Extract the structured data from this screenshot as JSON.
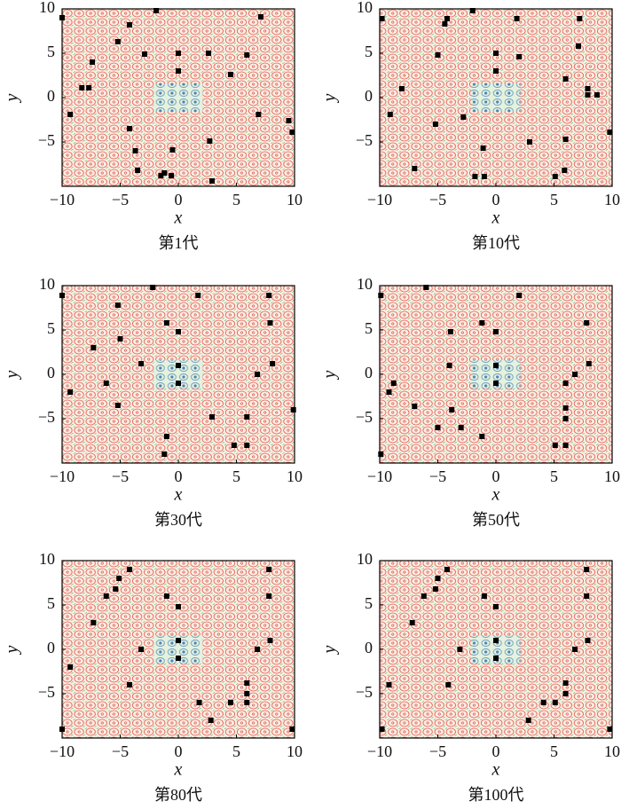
{
  "chart_data": [
    {
      "type": "scatter",
      "caption": "第1代",
      "xlabel": "x",
      "ylabel": "y",
      "color": "#000000",
      "xlim": [
        -10,
        10
      ],
      "ylim": [
        -10,
        10
      ],
      "xticks": [
        {
          "value": -10,
          "label": "−10"
        },
        {
          "value": -5,
          "label": "−5"
        },
        0,
        5,
        10
      ],
      "yticks": [
        {
          "value": -5,
          "label": "−5"
        },
        0,
        5,
        10
      ],
      "x": [
        -10,
        -4.2,
        -1.9,
        -5.2,
        -7.4,
        -8.3,
        -7.7,
        -9.3,
        -2.9,
        0,
        0,
        2.6,
        4.5,
        5.9,
        7.1,
        6.9,
        9.5,
        9.8,
        -4.2,
        -3.7,
        -3.5,
        -1.5,
        -1.2,
        -0.6,
        -0.5,
        2.7,
        2.9
      ],
      "y": [
        9,
        8.2,
        9.8,
        6.3,
        4,
        1.1,
        1.1,
        -1.9,
        4.9,
        5,
        3,
        5,
        2.6,
        4.8,
        9.1,
        -1.9,
        -2.6,
        -3.9,
        -3.5,
        -6,
        -8.2,
        -8.8,
        -8.5,
        -8.8,
        -5.9,
        -4.9,
        -9.4
      ]
    },
    {
      "type": "scatter",
      "caption": "第10代",
      "xlabel": "x",
      "ylabel": "y",
      "color": "#000000",
      "xlim": [
        -10,
        10
      ],
      "ylim": [
        -10,
        10
      ],
      "xticks": [
        {
          "value": -10,
          "label": "−10"
        },
        {
          "value": -5,
          "label": "−5"
        },
        0,
        5,
        10
      ],
      "yticks": [
        {
          "value": -5,
          "label": "−5"
        },
        0,
        5,
        10
      ],
      "x": [
        -9.8,
        -4.2,
        -4.4,
        -2,
        1.8,
        7.2,
        7.1,
        -5,
        0,
        0,
        2,
        6,
        -8.1,
        7.9,
        7.9,
        8.7,
        -9.1,
        -5.2,
        -2.8,
        2.9,
        6,
        9.8,
        -1.1,
        -7,
        -1.8,
        -1,
        5.1,
        5.9
      ],
      "y": [
        8.9,
        8.9,
        8.3,
        9.8,
        8.9,
        8.9,
        5.8,
        4.8,
        5,
        3,
        4.6,
        2.1,
        1,
        1,
        0.3,
        0.3,
        -1.9,
        -3,
        -2.2,
        -5,
        -4.7,
        -3.9,
        -5.7,
        -8,
        -8.9,
        -8.9,
        -8.9,
        -8.2
      ]
    },
    {
      "type": "scatter",
      "caption": "第30代",
      "xlabel": "x",
      "ylabel": "y",
      "color": "#000000",
      "xlim": [
        -10,
        10
      ],
      "ylim": [
        -10,
        10
      ],
      "xticks": [
        {
          "value": -10,
          "label": "−10"
        },
        {
          "value": -5,
          "label": "−5"
        },
        0,
        5,
        10
      ],
      "yticks": [
        {
          "value": -5,
          "label": "−5"
        },
        0,
        5,
        10
      ],
      "x": [
        -10,
        -2.2,
        1.7,
        7.8,
        -5.2,
        -1,
        0,
        7.9,
        -7.3,
        -5,
        -3.2,
        0,
        0,
        -6.2,
        -9.3,
        -5.2,
        6.8,
        8.1,
        2.9,
        5.9,
        9.9,
        -1,
        4.8,
        5.9,
        -1.2
      ],
      "y": [
        8.9,
        9.8,
        8.9,
        8.9,
        7.8,
        5.8,
        4.8,
        5.8,
        3,
        4,
        1.2,
        1,
        -1,
        -1,
        -2,
        -3.5,
        0,
        1.2,
        -4.8,
        -4.8,
        -4,
        -7,
        -8,
        -8,
        -9
      ]
    },
    {
      "type": "scatter",
      "caption": "第50代",
      "xlabel": "x",
      "ylabel": "y",
      "color": "#000000",
      "xlim": [
        -10,
        10
      ],
      "ylim": [
        -10,
        10
      ],
      "xticks": [
        {
          "value": -10,
          "label": "−10"
        },
        {
          "value": -5,
          "label": "−5"
        },
        0,
        5,
        10
      ],
      "yticks": [
        {
          "value": -5,
          "label": "−5"
        },
        0,
        5,
        10
      ],
      "x": [
        -9.9,
        -6,
        2,
        7.8,
        -1.2,
        0,
        -3.9,
        0,
        0,
        -8.8,
        -9.2,
        -4,
        -7,
        -3.8,
        -5,
        -3,
        -1.2,
        6,
        6,
        6,
        6.8,
        8,
        5.1,
        6,
        -9.9
      ],
      "y": [
        8.9,
        9.8,
        8.9,
        5.8,
        5.8,
        4.8,
        4.8,
        1,
        -1,
        -1,
        -2,
        1,
        -3.6,
        -4,
        -6,
        -6,
        -7,
        -1,
        -3.8,
        -5,
        0,
        1.2,
        -8,
        -8,
        -9
      ]
    },
    {
      "type": "scatter",
      "caption": "第80代",
      "xlabel": "x",
      "ylabel": "y",
      "color": "#000000",
      "xlim": [
        -10,
        10
      ],
      "ylim": [
        -10,
        10
      ],
      "xticks": [
        {
          "value": -10,
          "label": "−10"
        },
        {
          "value": -5,
          "label": "−5"
        },
        0,
        5,
        10
      ],
      "yticks": [
        {
          "value": -5,
          "label": "−5"
        },
        0,
        5,
        10
      ],
      "x": [
        -4.2,
        -5.1,
        -5.4,
        -6.2,
        -7.3,
        -1,
        0,
        0,
        0,
        -3.2,
        -9.3,
        -4.2,
        6.8,
        7.9,
        7.8,
        7.8,
        5.9,
        5.9,
        4.5,
        5.9,
        1.8,
        2.8,
        -10,
        9.8
      ],
      "y": [
        9,
        8,
        6.8,
        6,
        3,
        6,
        4.8,
        1,
        -1,
        0,
        -2,
        -4,
        0,
        1,
        6,
        9,
        -3.8,
        -5,
        -6,
        -6,
        -6,
        -8,
        -9,
        -9
      ]
    },
    {
      "type": "scatter",
      "caption": "第100代",
      "xlabel": "x",
      "ylabel": "y",
      "color": "#000000",
      "xlim": [
        -10,
        10
      ],
      "ylim": [
        -10,
        10
      ],
      "xticks": [
        {
          "value": -10,
          "label": "−10"
        },
        {
          "value": -5,
          "label": "−5"
        },
        0,
        5,
        10
      ],
      "yticks": [
        {
          "value": -5,
          "label": "−5"
        },
        0,
        5,
        10
      ],
      "x": [
        -4.2,
        -5,
        -5.2,
        -6.2,
        -7.2,
        -1,
        0,
        0,
        0,
        -3.1,
        -9.2,
        -4.1,
        6.8,
        7.9,
        7.8,
        7.8,
        6,
        6,
        4.1,
        5.1,
        2.8,
        -9.8,
        9.8
      ],
      "y": [
        9,
        8,
        6.8,
        6,
        3,
        6,
        4.8,
        1,
        -1,
        0,
        -4,
        -4,
        0,
        1,
        6,
        9,
        -3.8,
        -5,
        -6,
        -6,
        -8,
        -9,
        -9
      ]
    }
  ]
}
